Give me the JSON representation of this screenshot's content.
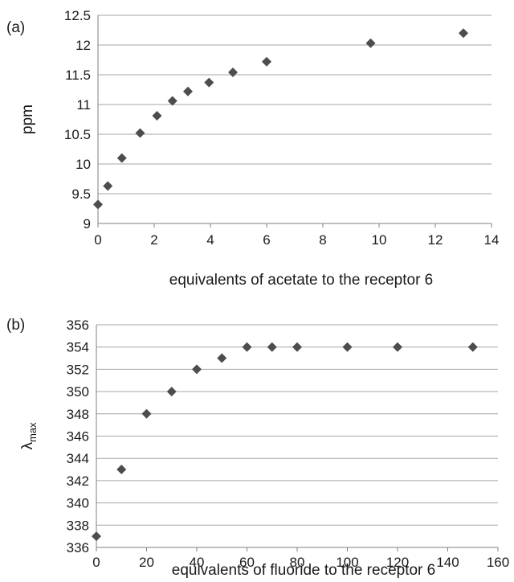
{
  "chart_data": [
    {
      "type": "scatter",
      "panel_label": "(a)",
      "xlabel": "equivalents of acetate to the receptor 6",
      "ylabel": "ppm",
      "ylabel_sub": "",
      "xlim": [
        0,
        14
      ],
      "ylim": [
        9,
        12.5
      ],
      "xticks": [
        "0",
        "2",
        "4",
        "6",
        "8",
        "10",
        "12",
        "14"
      ],
      "yticks": [
        "9",
        "9.5",
        "10",
        "10.5",
        "11",
        "11.5",
        "12",
        "12.5"
      ],
      "grid": "horizontal",
      "marker_color": "#4d4d4d",
      "points": [
        {
          "x": 0,
          "y": 9.32
        },
        {
          "x": 0.35,
          "y": 9.63
        },
        {
          "x": 0.85,
          "y": 10.1
        },
        {
          "x": 1.5,
          "y": 10.52
        },
        {
          "x": 2.1,
          "y": 10.81
        },
        {
          "x": 2.65,
          "y": 11.06
        },
        {
          "x": 3.2,
          "y": 11.22
        },
        {
          "x": 3.95,
          "y": 11.37
        },
        {
          "x": 4.8,
          "y": 11.54
        },
        {
          "x": 6.0,
          "y": 11.72
        },
        {
          "x": 9.7,
          "y": 12.03
        },
        {
          "x": 13.0,
          "y": 12.2
        }
      ]
    },
    {
      "type": "scatter",
      "panel_label": "(b)",
      "xlabel": "equivalents of fluoride to the receptor 6",
      "ylabel": "λ",
      "ylabel_sub": "max",
      "xlim": [
        0,
        160
      ],
      "ylim": [
        336,
        356
      ],
      "xticks": [
        "0",
        "20",
        "40",
        "60",
        "80",
        "100",
        "120",
        "140",
        "160"
      ],
      "yticks": [
        "336",
        "338",
        "340",
        "342",
        "344",
        "346",
        "348",
        "350",
        "352",
        "354",
        "356"
      ],
      "grid": "horizontal",
      "marker_color": "#4d4d4d",
      "points": [
        {
          "x": 0,
          "y": 337
        },
        {
          "x": 10,
          "y": 343
        },
        {
          "x": 20,
          "y": 348
        },
        {
          "x": 30,
          "y": 350
        },
        {
          "x": 40,
          "y": 352
        },
        {
          "x": 50,
          "y": 353
        },
        {
          "x": 60,
          "y": 354
        },
        {
          "x": 70,
          "y": 354
        },
        {
          "x": 80,
          "y": 354
        },
        {
          "x": 100,
          "y": 354
        },
        {
          "x": 120,
          "y": 354
        },
        {
          "x": 150,
          "y": 354
        }
      ]
    }
  ]
}
